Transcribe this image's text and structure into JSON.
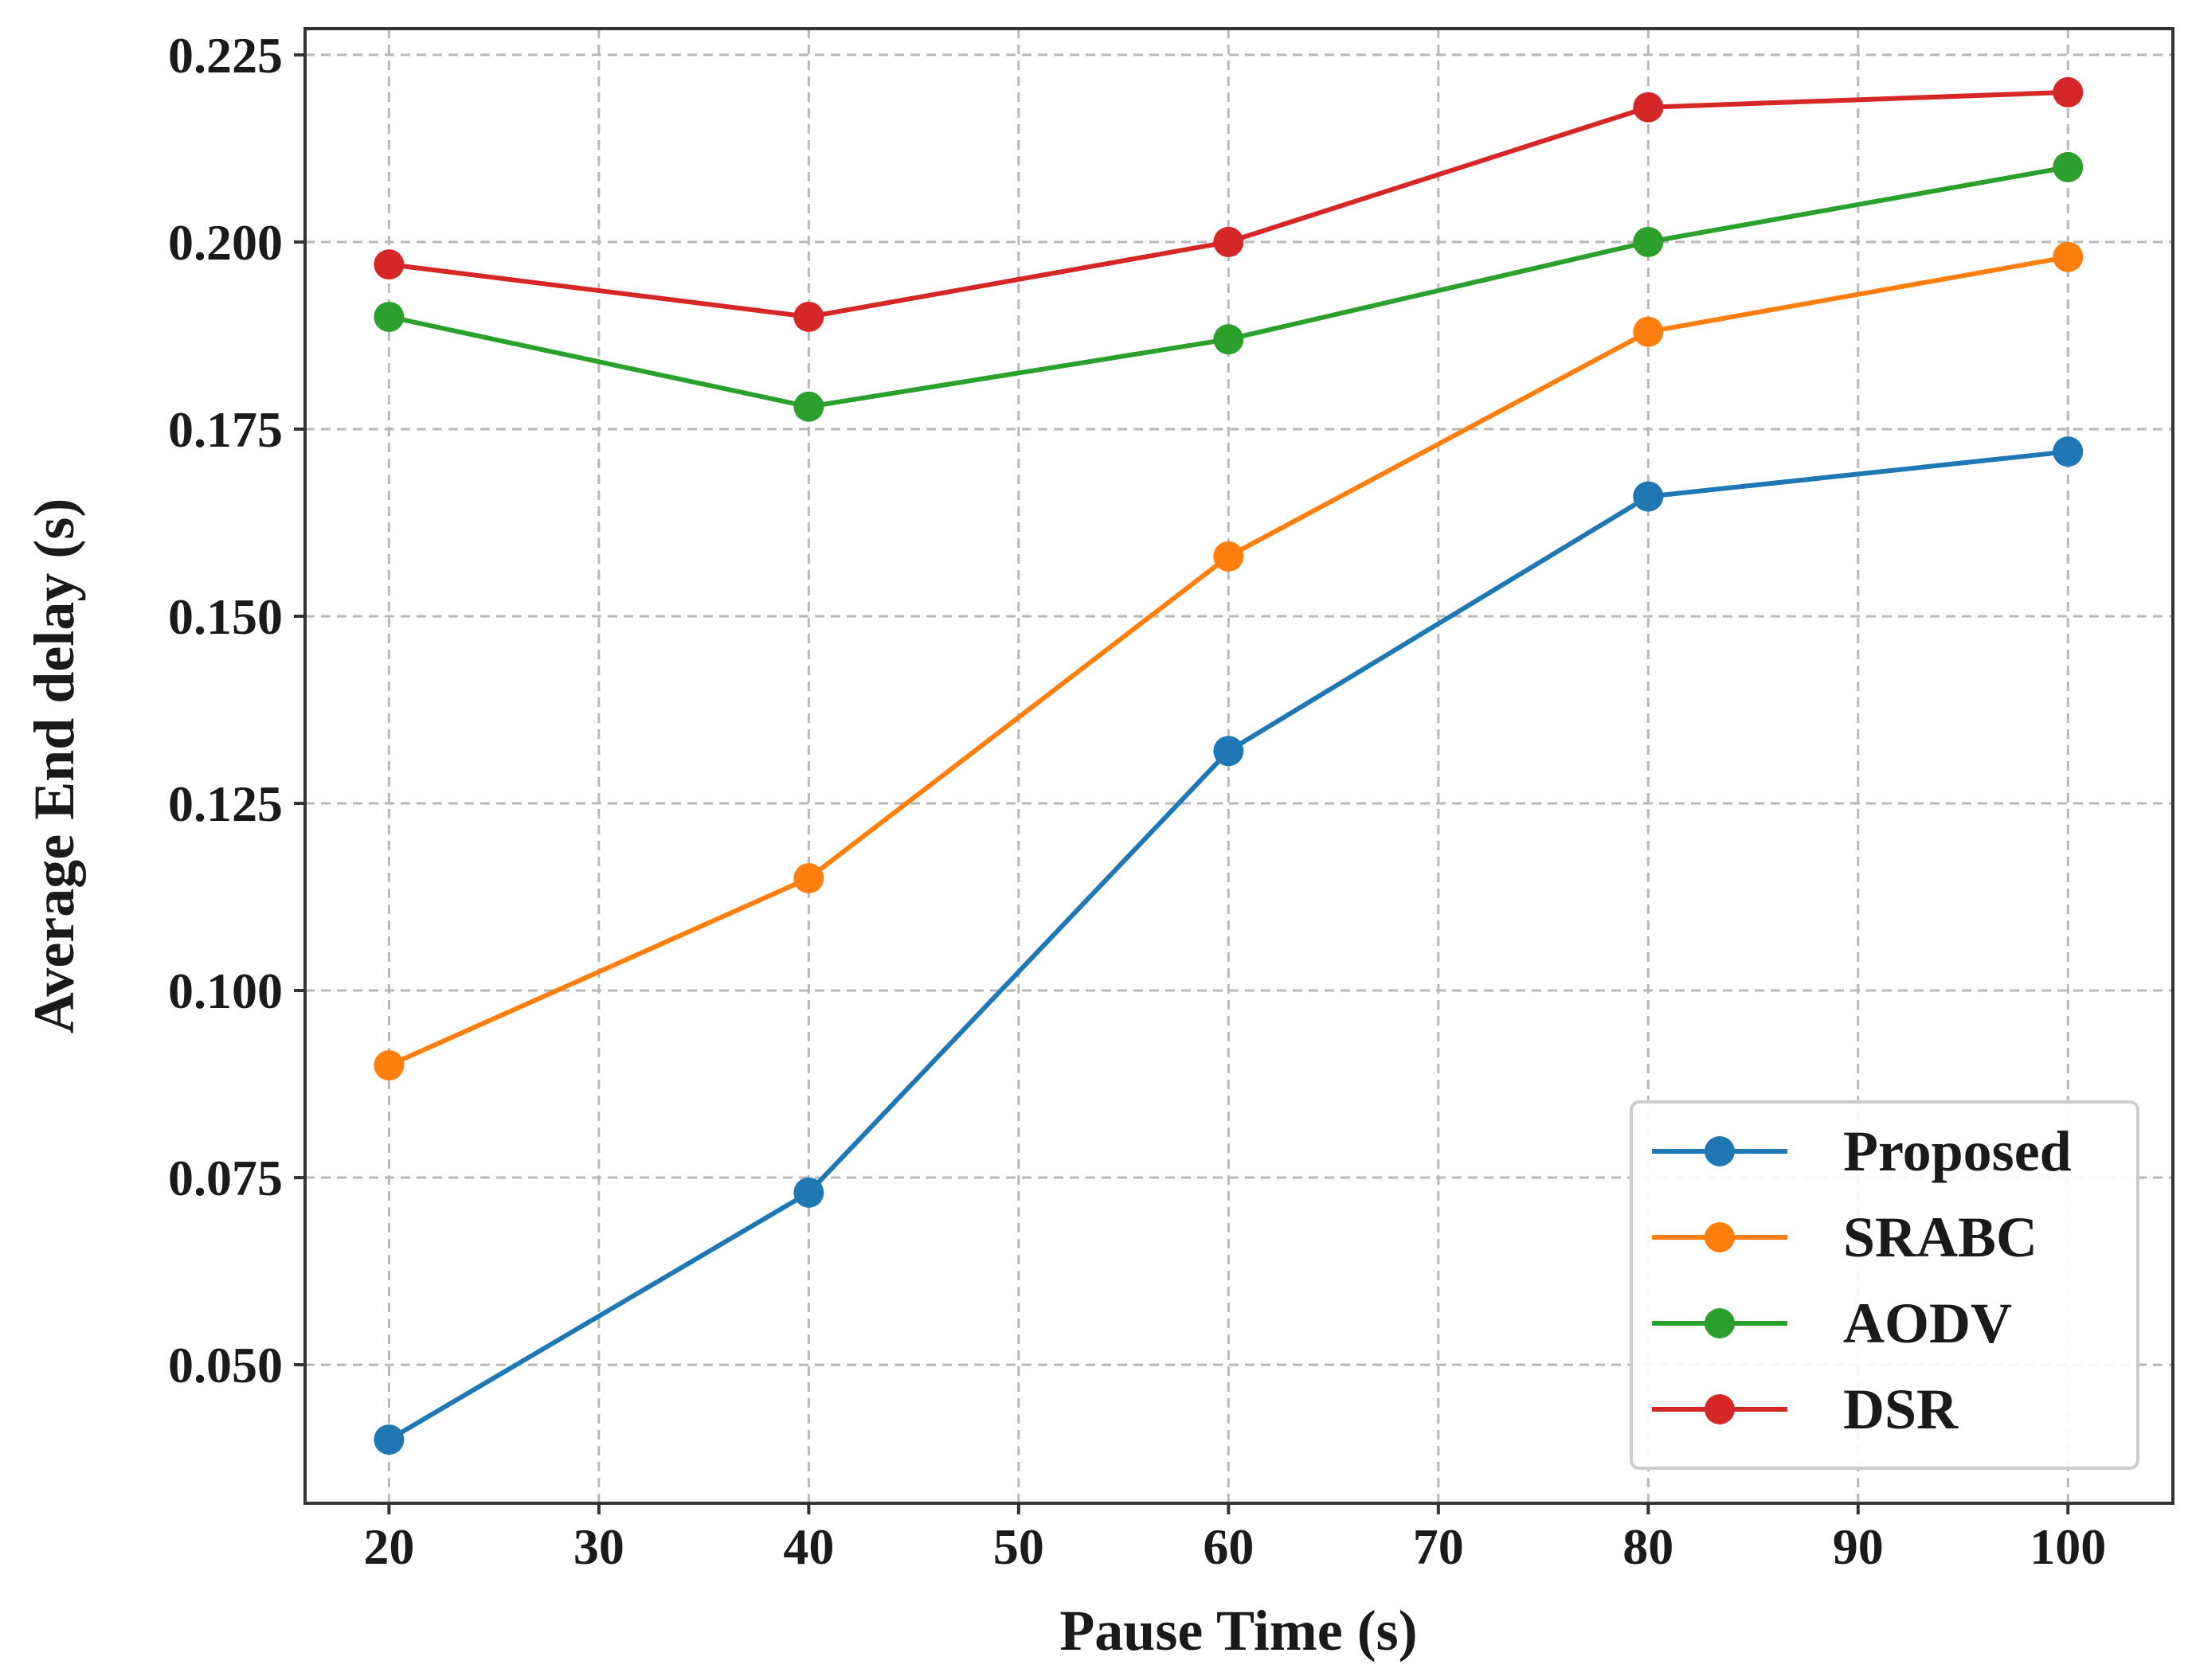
{
  "chart_data": {
    "type": "line",
    "title": "",
    "xlabel": "Pause Time (s)",
    "ylabel": "Average End delay (s)",
    "x": [
      20,
      40,
      60,
      80,
      100
    ],
    "xlim": [
      16,
      105
    ],
    "ylim": [
      0.0315,
      0.2285
    ],
    "xticks": [
      20,
      30,
      40,
      50,
      60,
      70,
      80,
      90,
      100
    ],
    "xtick_labels": [
      "20",
      "30",
      "40",
      "50",
      "60",
      "70",
      "80",
      "90",
      "100"
    ],
    "yticks": [
      0.05,
      0.075,
      0.1,
      0.125,
      0.15,
      0.175,
      0.2,
      0.225
    ],
    "ytick_labels": [
      "0.050",
      "0.075",
      "0.100",
      "0.125",
      "0.150",
      "0.175",
      "0.200",
      "0.225"
    ],
    "grid": true,
    "legend_position": "lower-right",
    "series": [
      {
        "name": "Proposed",
        "color": "#1f77b4",
        "values": [
          0.04,
          0.073,
          0.132,
          0.166,
          0.172
        ]
      },
      {
        "name": "SRABC",
        "color": "#ff7f0e",
        "values": [
          0.09,
          0.115,
          0.158,
          0.188,
          0.198
        ]
      },
      {
        "name": "AODV",
        "color": "#2ca02c",
        "values": [
          0.19,
          0.178,
          0.187,
          0.2,
          0.21
        ]
      },
      {
        "name": "DSR",
        "color": "#d62728",
        "values": [
          0.197,
          0.19,
          0.2,
          0.218,
          0.22
        ]
      }
    ]
  }
}
